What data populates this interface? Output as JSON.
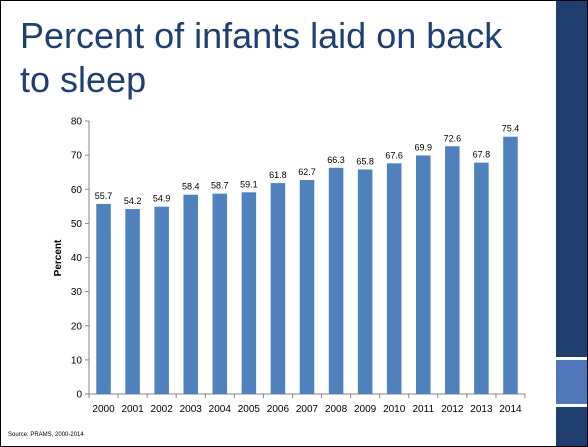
{
  "slide": {
    "title": "Percent of infants laid on back to sleep",
    "source": "Source: PRAMS, 2000-2014",
    "colors": {
      "title": "#213f6e",
      "side_band": "#213f6e",
      "side_accent": "#4e76b8",
      "bar": "#4f81bd"
    }
  },
  "chart_data": {
    "type": "bar",
    "title": "",
    "xlabel": "",
    "ylabel": "Percent",
    "ylim": [
      0,
      80
    ],
    "yticks": [
      0,
      10,
      20,
      30,
      40,
      50,
      60,
      70,
      80
    ],
    "grid": false,
    "legend": "none",
    "categories": [
      "2000",
      "2001",
      "2002",
      "2003",
      "2004",
      "2005",
      "2006",
      "2007",
      "2008",
      "2009",
      "2010",
      "2011",
      "2012",
      "2013",
      "2014"
    ],
    "values": [
      55.7,
      54.2,
      54.9,
      58.4,
      58.7,
      59.1,
      61.8,
      62.7,
      66.3,
      65.8,
      67.6,
      69.9,
      72.6,
      67.8,
      75.4
    ],
    "data_labels": [
      "55.7",
      "54.2",
      "54.9",
      "58.4",
      "58.7",
      "59.1",
      "61.8",
      "62.7",
      "66.3",
      "65.8",
      "67.6",
      "69.9",
      "72.6",
      "67.8",
      "75.4"
    ]
  }
}
